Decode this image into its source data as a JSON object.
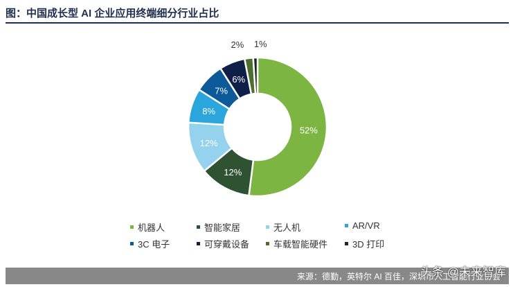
{
  "header": {
    "title": "图：中国成长型 AI 企业应用终端细分行业占比"
  },
  "chart_data": {
    "type": "donut",
    "title": "图：中国成长型 AI 企业应用终端细分行业占比",
    "slices": [
      {
        "name": "机器人",
        "value": 52,
        "label": "52%",
        "color": "#7db543"
      },
      {
        "name": "智能家居",
        "value": 12,
        "label": "12%",
        "color": "#2f5233"
      },
      {
        "name": "无人机",
        "value": 12,
        "label": "12%",
        "color": "#94d2ee"
      },
      {
        "name": "AR/VR",
        "value": 8,
        "label": "8%",
        "color": "#2aa6dc"
      },
      {
        "name": "3C 电子",
        "value": 7,
        "label": "7%",
        "color": "#0c5a99"
      },
      {
        "name": "可穿戴设备",
        "value": 6,
        "label": "6%",
        "color": "#0f1f47"
      },
      {
        "name": "车载智能硬件",
        "value": 2,
        "label": "2%",
        "color": "#4c6f2f"
      },
      {
        "name": "3D 打印",
        "value": 1,
        "label": "1%",
        "color": "#1d2a22"
      }
    ],
    "legend_position": "bottom"
  },
  "footer": {
    "source": "来源：德勤，英特尔 AI 百佳，深圳市人工智能行业协会",
    "watermark": "头条 @未来智库"
  }
}
